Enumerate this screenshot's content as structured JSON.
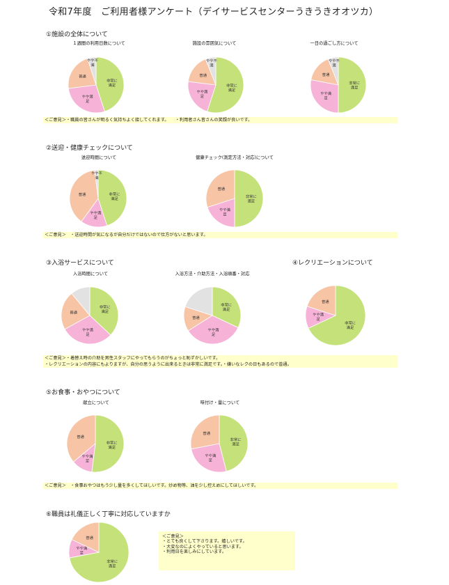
{
  "title": "令和7年度　ご利用者様アンケート（デイサービスセンターうきうきオオツカ）",
  "colors": {
    "very_satisfied": "#c5e17a",
    "somewhat": "#f6b3d7",
    "normal": "#f7c4a5",
    "somewhat_dissatisfied": "#e2e2e2",
    "comment_bg": "#ffffcc"
  },
  "sections": {
    "s1": {
      "heading": "①施設の全体について",
      "comment": "＜ご意見＞・職員の皆さんが明るく気持ちよく接してくれます。　　・利用者さん皆さんの笑顔が良いです。"
    },
    "s2": {
      "heading": "②送迎・健康チェックについて",
      "comment": "＜ご意見＞　・送迎時間が気になるが自分だけではないので仕方がないと思います。"
    },
    "s3": {
      "heading": "③入浴サービスについて",
      "comment_1": "＜ご意見＞・着替え時の介助を男性スタッフにやってもらうのがちょっと恥ずかしいです。",
      "comment_2": "・レクリエーションの内容にもよりますが、自分の思うように出来るときは非常に満足です。・嫌いなレクの日もあるので普通。"
    },
    "s4": {
      "heading": "④レクリエーションについて"
    },
    "s5": {
      "heading": "⑤お食事・おやつについて",
      "comment": "＜ご意見＞　・食事おやつはもう少し量を多くしてほしいです。炒め物等、油を少し控えめにしてほしいです。"
    },
    "s6": {
      "heading": "⑥職員は礼儀正しく丁寧に対応していますか",
      "comment_lines": [
        "＜ご意見＞",
        "・とても良くして下さります。嬉しいです。",
        "・大変なのによくやっていると思います。",
        "・利用日を楽しみにしています。"
      ]
    }
  },
  "chart_data": [
    {
      "id": "c1",
      "type": "pie",
      "title": "１週間の利用日数について",
      "slices": [
        {
          "label": "非常に満足",
          "value": 45,
          "color": "#c5e17a"
        },
        {
          "label": "やや満足",
          "value": 28,
          "color": "#f6b3d7"
        },
        {
          "label": "普通",
          "value": 22,
          "color": "#f7c4a5"
        },
        {
          "label": "やや不満",
          "value": 5,
          "color": "#e2e2e2"
        }
      ]
    },
    {
      "id": "c2",
      "type": "pie",
      "title": "施設の雰囲気について",
      "slices": [
        {
          "label": "非常に満足",
          "value": 55,
          "color": "#c5e17a"
        },
        {
          "label": "やや満足",
          "value": 22,
          "color": "#f6b3d7"
        },
        {
          "label": "普通",
          "value": 17,
          "color": "#f7c4a5"
        },
        {
          "label": "やや不満",
          "value": 6,
          "color": "#e2e2e2"
        }
      ]
    },
    {
      "id": "c3",
      "type": "pie",
      "title": "一日の過ごし方について",
      "slices": [
        {
          "label": "非常に満足",
          "value": 50,
          "color": "#c5e17a"
        },
        {
          "label": "やや満足",
          "value": 28,
          "color": "#f6b3d7"
        },
        {
          "label": "普通",
          "value": 16,
          "color": "#f7c4a5"
        },
        {
          "label": "やや不満",
          "value": 6,
          "color": "#e2e2e2"
        }
      ]
    },
    {
      "id": "c4",
      "type": "pie",
      "title": "送迎時間について",
      "slices": [
        {
          "label": "非常に満足",
          "value": 45,
          "color": "#c5e17a"
        },
        {
          "label": "やや満足",
          "value": 15,
          "color": "#f6b3d7"
        },
        {
          "label": "普通",
          "value": 38,
          "color": "#f7c4a5"
        },
        {
          "label": "やや不満",
          "value": 2,
          "color": "#e2e2e2"
        }
      ]
    },
    {
      "id": "c5",
      "type": "pie",
      "title": "健康チェック(測定方法・対応)について",
      "slices": [
        {
          "label": "非常に満足",
          "value": 50,
          "color": "#c5e17a"
        },
        {
          "label": "やや満足",
          "value": 20,
          "color": "#f6b3d7"
        },
        {
          "label": "普通",
          "value": 30,
          "color": "#f7c4a5"
        }
      ]
    },
    {
      "id": "c6",
      "type": "pie",
      "title": "入浴時間について",
      "slices": [
        {
          "label": "非常に満足",
          "value": 37,
          "color": "#c5e17a"
        },
        {
          "label": "やや満足",
          "value": 30,
          "color": "#f6b3d7"
        },
        {
          "label": "普通",
          "value": 22,
          "color": "#f7c4a5"
        },
        {
          "label": "",
          "value": 11,
          "color": "#e2e2e2"
        }
      ]
    },
    {
      "id": "c7",
      "type": "pie",
      "title": "入浴方法・介助方法・入浴順番・対応",
      "slices": [
        {
          "label": "非常に満足",
          "value": 32,
          "color": "#c5e17a"
        },
        {
          "label": "やや満足",
          "value": 34,
          "color": "#f6b3d7"
        },
        {
          "label": "普通",
          "value": 14,
          "color": "#f7c4a5"
        },
        {
          "label": "",
          "value": 20,
          "color": "#e2e2e2"
        }
      ]
    },
    {
      "id": "c8",
      "type": "pie",
      "title": "",
      "slices": [
        {
          "label": "非常に満足",
          "value": 68,
          "color": "#c5e17a"
        },
        {
          "label": "やや満足",
          "value": 12,
          "color": "#f6b3d7"
        },
        {
          "label": "普通",
          "value": 20,
          "color": "#f7c4a5"
        }
      ]
    },
    {
      "id": "c9",
      "type": "pie",
      "title": "献立について",
      "slices": [
        {
          "label": "非常に満足",
          "value": 52,
          "color": "#c5e17a"
        },
        {
          "label": "やや満足",
          "value": 12,
          "color": "#f6b3d7"
        },
        {
          "label": "普通",
          "value": 36,
          "color": "#f7c4a5"
        }
      ]
    },
    {
      "id": "c10",
      "type": "pie",
      "title": "味付け・量について",
      "slices": [
        {
          "label": "非常に満足",
          "value": 46,
          "color": "#c5e17a"
        },
        {
          "label": "やや満足",
          "value": 26,
          "color": "#f6b3d7"
        },
        {
          "label": "普通",
          "value": 28,
          "color": "#f7c4a5"
        }
      ]
    },
    {
      "id": "c11",
      "type": "pie",
      "title": "",
      "slices": [
        {
          "label": "非常に満足",
          "value": 72,
          "color": "#c5e17a"
        },
        {
          "label": "やや満足",
          "value": 10,
          "color": "#f6b3d7"
        },
        {
          "label": "普通",
          "value": 18,
          "color": "#f7c4a5"
        }
      ]
    }
  ]
}
